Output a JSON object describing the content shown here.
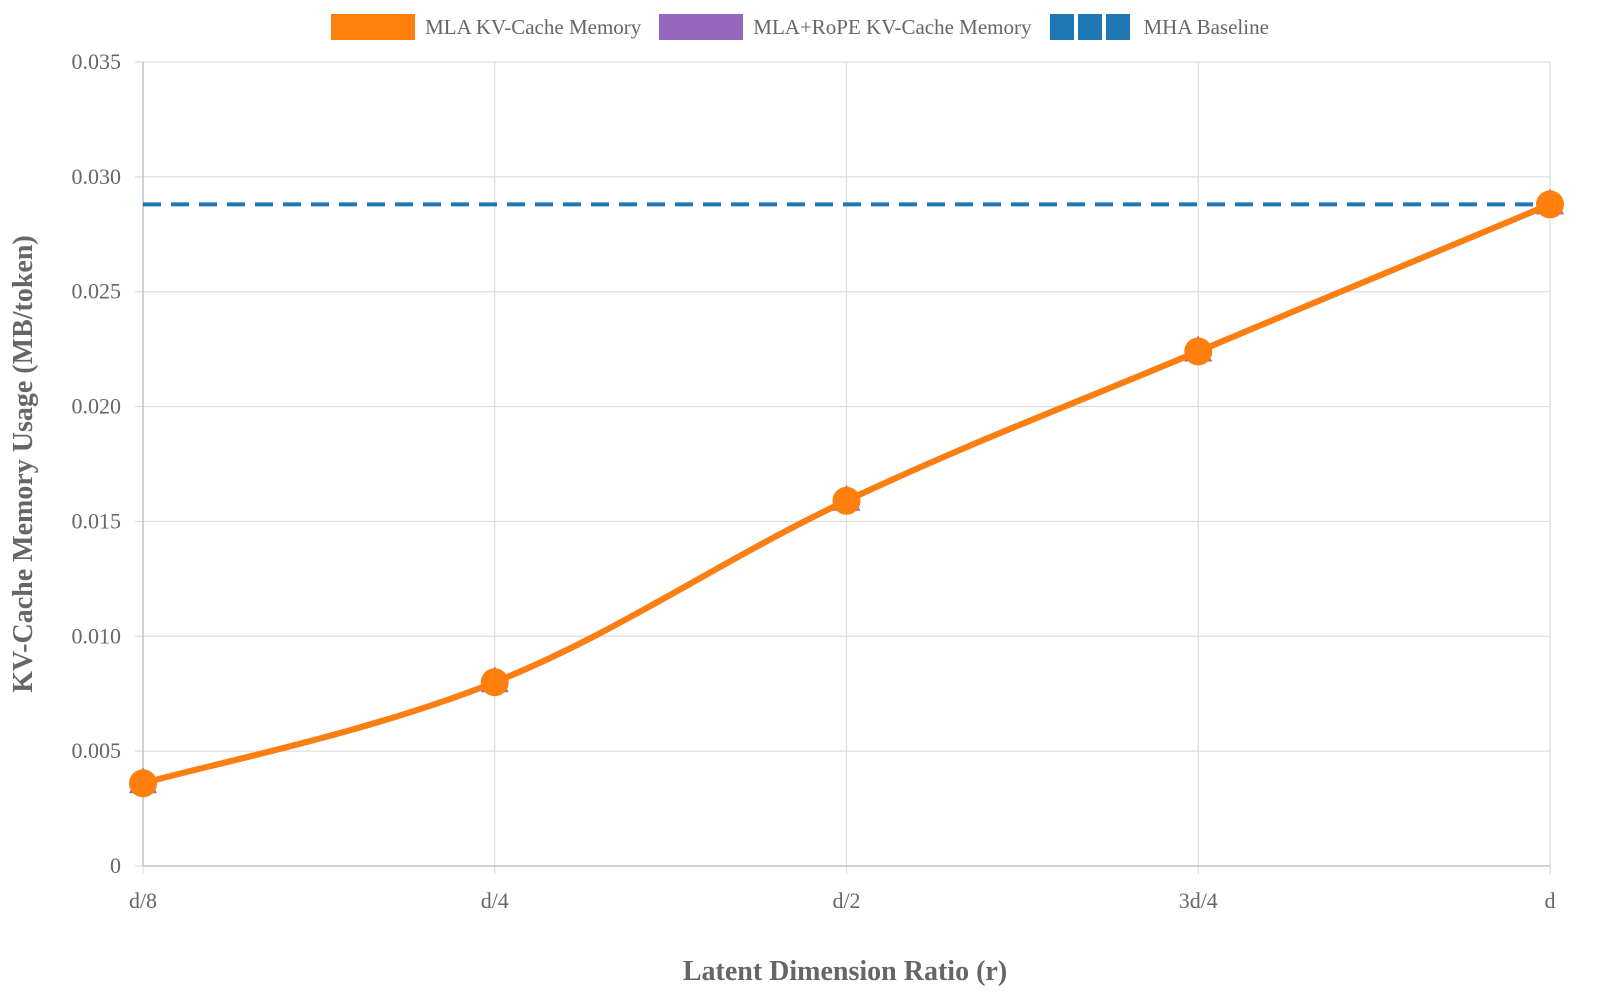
{
  "chart_data": {
    "type": "line",
    "categories": [
      "d/8",
      "d/4",
      "d/2",
      "3d/4",
      "d"
    ],
    "series": [
      {
        "name": "MLA KV-Cache Memory",
        "values": [
          0.0036,
          0.008,
          0.0159,
          0.0224,
          0.0288
        ],
        "color": "#ff7f0e",
        "style": "solid"
      },
      {
        "name": "MLA+RoPE KV-Cache Memory",
        "values": [
          0.0036,
          0.008,
          0.0159,
          0.0224,
          0.0288
        ],
        "color": "#9467bd",
        "style": "solid"
      },
      {
        "name": "MHA Baseline",
        "values": [
          0.0288,
          0.0288,
          0.0288,
          0.0288,
          0.0288
        ],
        "color": "#1f77b4",
        "style": "dashed"
      }
    ],
    "xlabel": "Latent Dimension Ratio (r)",
    "ylabel": "KV-Cache Memory Usage (MB/token)",
    "ylim": [
      0,
      0.035
    ],
    "yticks": [
      "0",
      "0.005",
      "0.010",
      "0.015",
      "0.020",
      "0.025",
      "0.030",
      "0.035"
    ],
    "ytick_values": [
      0,
      0.005,
      0.01,
      0.015,
      0.02,
      0.025,
      0.03,
      0.035
    ],
    "grid": true,
    "legend_position": "top-center"
  }
}
